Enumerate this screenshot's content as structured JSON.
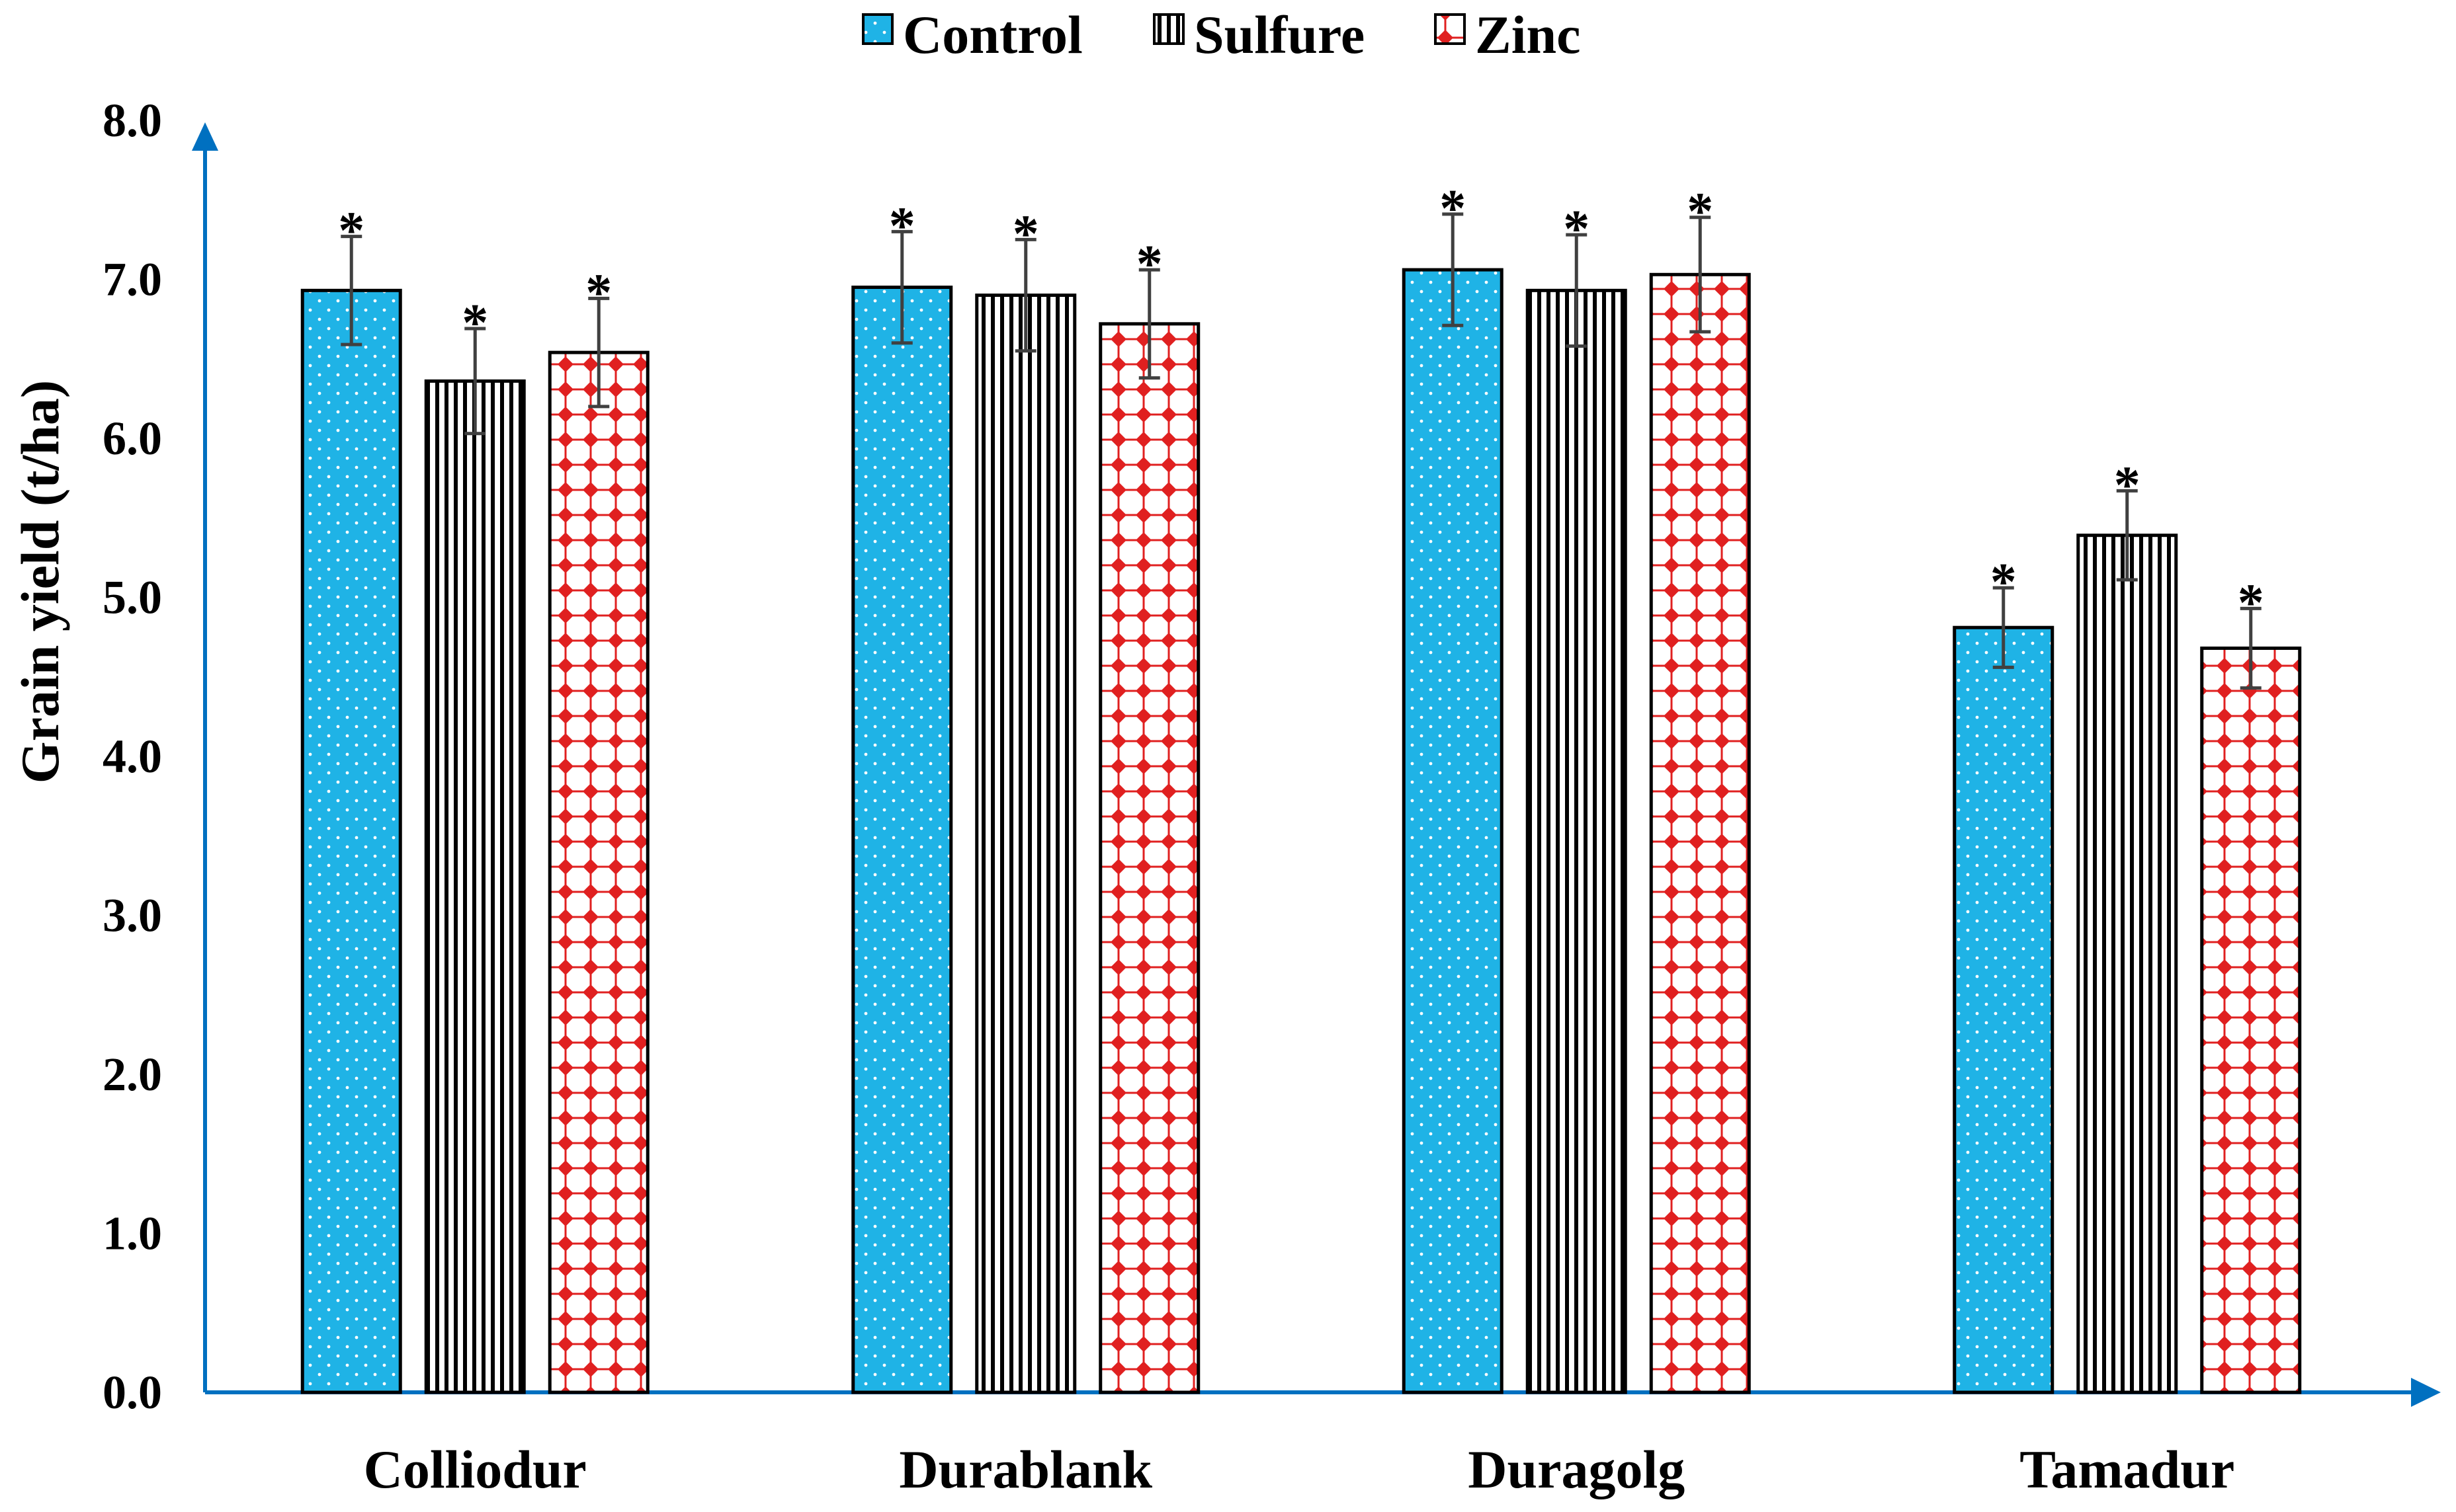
{
  "chart_data": {
    "type": "bar",
    "title": "",
    "xlabel": "",
    "ylabel": "Grain yield (t/ha)",
    "ylim": [
      0,
      8
    ],
    "yticks": [
      "0.0",
      "1.0",
      "2.0",
      "3.0",
      "4.0",
      "5.0",
      "6.0",
      "7.0",
      "8.0"
    ],
    "categories": [
      "Colliodur",
      "Durablank",
      "Duragolg",
      "Tamadur"
    ],
    "series": [
      {
        "name": "Control",
        "values": [
          6.93,
          6.95,
          7.06,
          4.81
        ],
        "errors": [
          0.34,
          0.35,
          0.35,
          0.25
        ],
        "significance": [
          "*",
          "*",
          "*",
          "*"
        ],
        "color": "#1fb3e6",
        "pattern": "dotted"
      },
      {
        "name": "Sulfure",
        "values": [
          6.36,
          6.9,
          6.93,
          5.39
        ],
        "errors": [
          0.33,
          0.35,
          0.35,
          0.28
        ],
        "significance": [
          "*",
          "*",
          "*",
          "*"
        ],
        "color": "#000000",
        "pattern": "vertical-stripes"
      },
      {
        "name": "Zinc",
        "values": [
          6.54,
          6.72,
          7.03,
          4.68
        ],
        "errors": [
          0.34,
          0.34,
          0.36,
          0.25
        ],
        "significance": [
          "*",
          "*",
          "*",
          "*"
        ],
        "color": "#e02020",
        "pattern": "red-diamond-grid"
      }
    ],
    "legend_position": "top-center",
    "axis_color": "#0070c0",
    "grid": false
  }
}
